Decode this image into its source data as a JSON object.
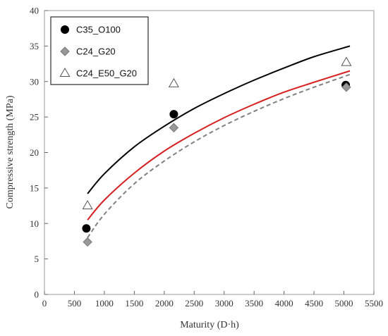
{
  "chart_data": {
    "type": "scatter",
    "title": "",
    "xlabel": "Maturity (D·h)",
    "ylabel": "Compressive strength (MPa)",
    "xlim": [
      0,
      5500
    ],
    "ylim": [
      0,
      40
    ],
    "xticks": [
      0,
      500,
      1000,
      1500,
      2000,
      2500,
      3000,
      3500,
      4000,
      4500,
      5000,
      5500
    ],
    "yticks": [
      0,
      5,
      10,
      15,
      20,
      25,
      30,
      35,
      40
    ],
    "grid": false,
    "legend_position": "top-left",
    "series": [
      {
        "name": "C35_O100",
        "marker": "circle",
        "color": "#000000",
        "points": [
          [
            700,
            9.3
          ],
          [
            2160,
            25.4
          ],
          [
            5030,
            29.5
          ]
        ],
        "fit": {
          "style": "solid",
          "color": "#000000",
          "points": [
            [
              720,
              14.2
            ],
            [
              1000,
              17.0
            ],
            [
              1500,
              20.8
            ],
            [
              2000,
              23.7
            ],
            [
              2500,
              26.2
            ],
            [
              3000,
              28.3
            ],
            [
              3500,
              30.2
            ],
            [
              4000,
              31.9
            ],
            [
              4500,
              33.5
            ],
            [
              5100,
              35.0
            ]
          ]
        }
      },
      {
        "name": "C24_G20",
        "marker": "diamond",
        "color": "#999999",
        "points": [
          [
            720,
            7.4
          ],
          [
            2160,
            23.5
          ],
          [
            5040,
            29.2
          ]
        ],
        "fit": {
          "style": "dashed",
          "color": "#808080",
          "points": [
            [
              720,
              8.0
            ],
            [
              1000,
              11.3
            ],
            [
              1500,
              15.6
            ],
            [
              2000,
              18.8
            ],
            [
              2500,
              21.5
            ],
            [
              3000,
              23.8
            ],
            [
              3500,
              25.8
            ],
            [
              4000,
              27.6
            ],
            [
              4500,
              29.2
            ],
            [
              5100,
              31.0
            ]
          ]
        }
      },
      {
        "name": "C24_E50_G20",
        "marker": "triangle",
        "color": "#ffffff",
        "points": [
          [
            720,
            12.5
          ],
          [
            2160,
            29.7
          ],
          [
            5040,
            32.7
          ]
        ]
      }
    ],
    "extra_lines": [
      {
        "style": "solid",
        "color": "#d62020",
        "points": [
          [
            720,
            10.5
          ],
          [
            1000,
            13.3
          ],
          [
            1500,
            17.1
          ],
          [
            2000,
            20.2
          ],
          [
            2500,
            22.7
          ],
          [
            3000,
            24.9
          ],
          [
            3500,
            26.8
          ],
          [
            4000,
            28.5
          ],
          [
            4500,
            29.9
          ],
          [
            5100,
            31.5
          ]
        ]
      }
    ]
  }
}
